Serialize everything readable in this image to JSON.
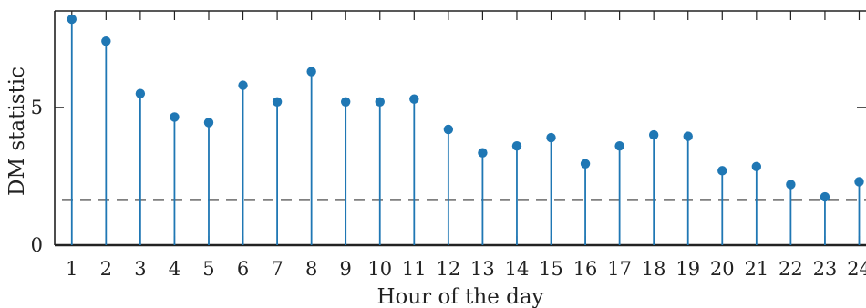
{
  "chart_data": {
    "type": "stem",
    "title": "",
    "xlabel": "Hour of the day",
    "ylabel": "DM statistic",
    "x": [
      1,
      2,
      3,
      4,
      5,
      6,
      7,
      8,
      9,
      10,
      11,
      12,
      13,
      14,
      15,
      16,
      17,
      18,
      19,
      20,
      21,
      22,
      23,
      24
    ],
    "values": [
      8.2,
      7.4,
      5.5,
      4.65,
      4.45,
      5.8,
      5.2,
      6.3,
      5.2,
      5.2,
      5.3,
      4.2,
      3.35,
      3.6,
      3.9,
      2.95,
      3.6,
      4.0,
      3.95,
      2.7,
      2.85,
      2.2,
      1.75,
      2.3
    ],
    "threshold": 1.64,
    "xlim": [
      0.5,
      24.2
    ],
    "ylim": [
      0,
      8.5
    ],
    "yticks": [
      0,
      5
    ],
    "xticks": [
      1,
      2,
      3,
      4,
      5,
      6,
      7,
      8,
      9,
      10,
      11,
      12,
      13,
      14,
      15,
      16,
      17,
      18,
      19,
      20,
      21,
      22,
      23,
      24
    ],
    "grid": false,
    "colors": {
      "stem": "#1f77b4",
      "marker": "#1f77b4",
      "threshold": "#000000",
      "axis": "#222222"
    }
  }
}
